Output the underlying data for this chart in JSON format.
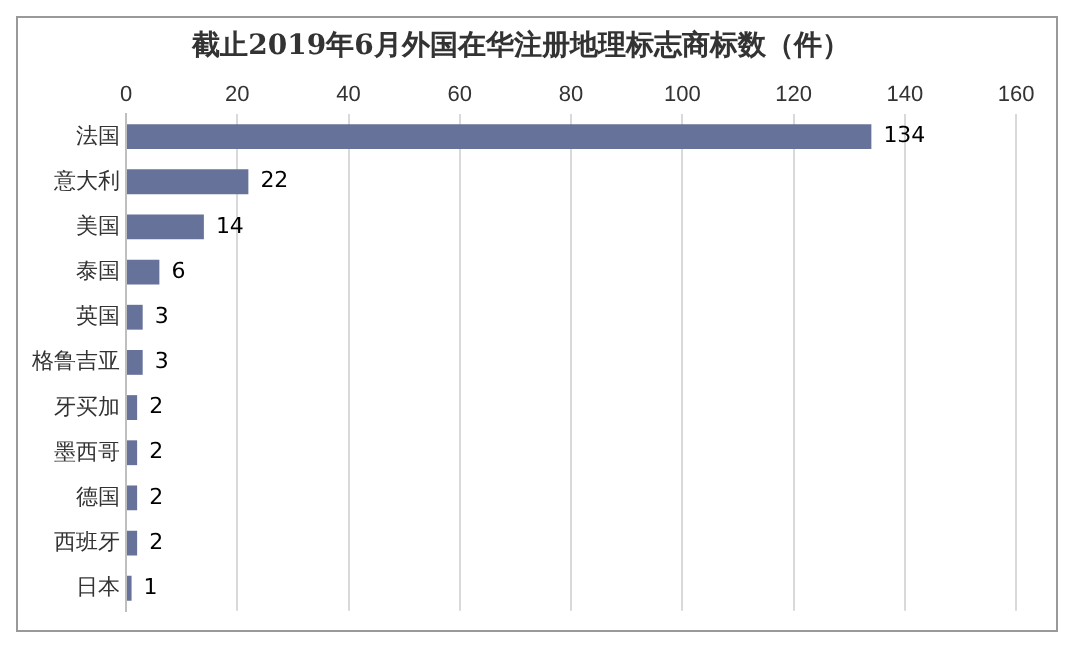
{
  "chart_data": {
    "type": "bar",
    "orientation": "horizontal",
    "title": "截止2019年6月外国在华注册地理标志商标数（件）",
    "categories": [
      "法国",
      "意大利",
      "美国",
      "泰国",
      "英国",
      "格鲁吉亚",
      "牙买加",
      "墨西哥",
      "德国",
      "西班牙",
      "日本"
    ],
    "values": [
      134,
      22,
      14,
      6,
      3,
      3,
      2,
      2,
      2,
      2,
      1
    ],
    "color": "#67729a",
    "xlim": [
      0,
      160
    ],
    "xticks": [
      0,
      20,
      40,
      60,
      80,
      100,
      120,
      140,
      160
    ],
    "grid": "x",
    "data_labels": true,
    "legend": false
  }
}
